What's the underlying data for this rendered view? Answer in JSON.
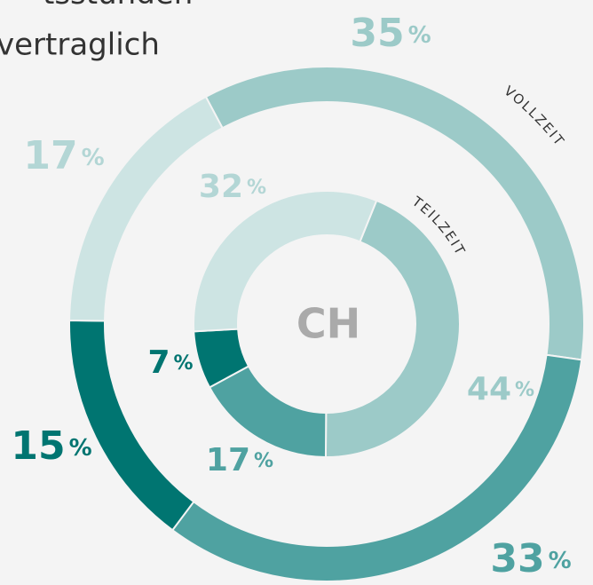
{
  "chart_data": {
    "type": "donut",
    "text_lines": [
      "tsstunden",
      "vertraglich"
    ],
    "center_label": "CH",
    "unit": "%",
    "series": [
      {
        "name": "VOLLZEIT",
        "values": [
          35,
          33,
          15,
          17
        ],
        "colors": [
          "#9ccac8",
          "#4fa2a1",
          "#007571",
          "#cde4e3"
        ]
      },
      {
        "name": "TEILZEIT",
        "values": [
          44,
          17,
          7,
          32
        ],
        "colors": [
          "#9ccac8",
          "#4fa2a1",
          "#007571",
          "#cde4e3"
        ]
      }
    ]
  }
}
